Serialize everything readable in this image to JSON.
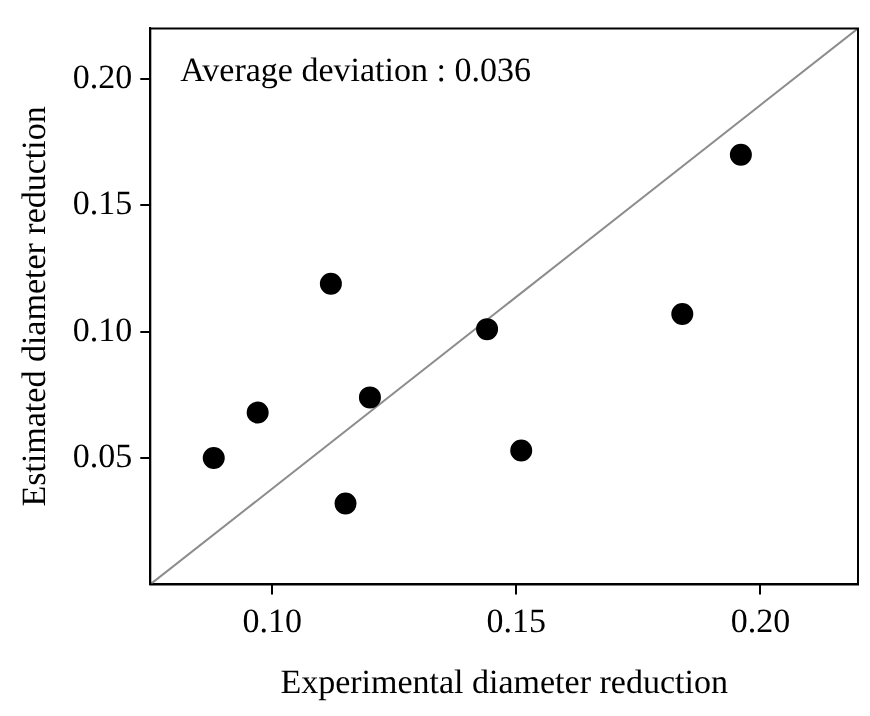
{
  "chart_data": {
    "type": "scatter",
    "xlabel": "Experimental diameter reduction",
    "ylabel": "Estimated diameter reduction",
    "annotations": [
      "Average deviation : 0.036"
    ],
    "xlim": [
      0.075,
      0.22
    ],
    "ylim": [
      0,
      0.22
    ],
    "xticks": [
      {
        "value": 0.1,
        "label": "0.10"
      },
      {
        "value": 0.15,
        "label": "0.15"
      },
      {
        "value": 0.2,
        "label": "0.20"
      }
    ],
    "yticks": [
      {
        "value": 0.05,
        "label": "0.05"
      },
      {
        "value": 0.1,
        "label": "0.10"
      },
      {
        "value": 0.15,
        "label": "0.15"
      },
      {
        "value": 0.2,
        "label": "0.20"
      }
    ],
    "grid": false,
    "legend": false,
    "marker": "circle",
    "series": [
      {
        "type": "scatter",
        "color": "#000000",
        "x": [
          0.088,
          0.097,
          0.112,
          0.115,
          0.12,
          0.144,
          0.151,
          0.184,
          0.196
        ],
        "values": [
          0.05,
          0.068,
          0.119,
          0.032,
          0.074,
          0.101,
          0.053,
          0.107,
          0.17
        ]
      },
      {
        "type": "line",
        "color": "#8c8c8c",
        "marker": "none",
        "x": [
          0.075,
          0.22
        ],
        "values": [
          0,
          0.22
        ]
      }
    ]
  }
}
